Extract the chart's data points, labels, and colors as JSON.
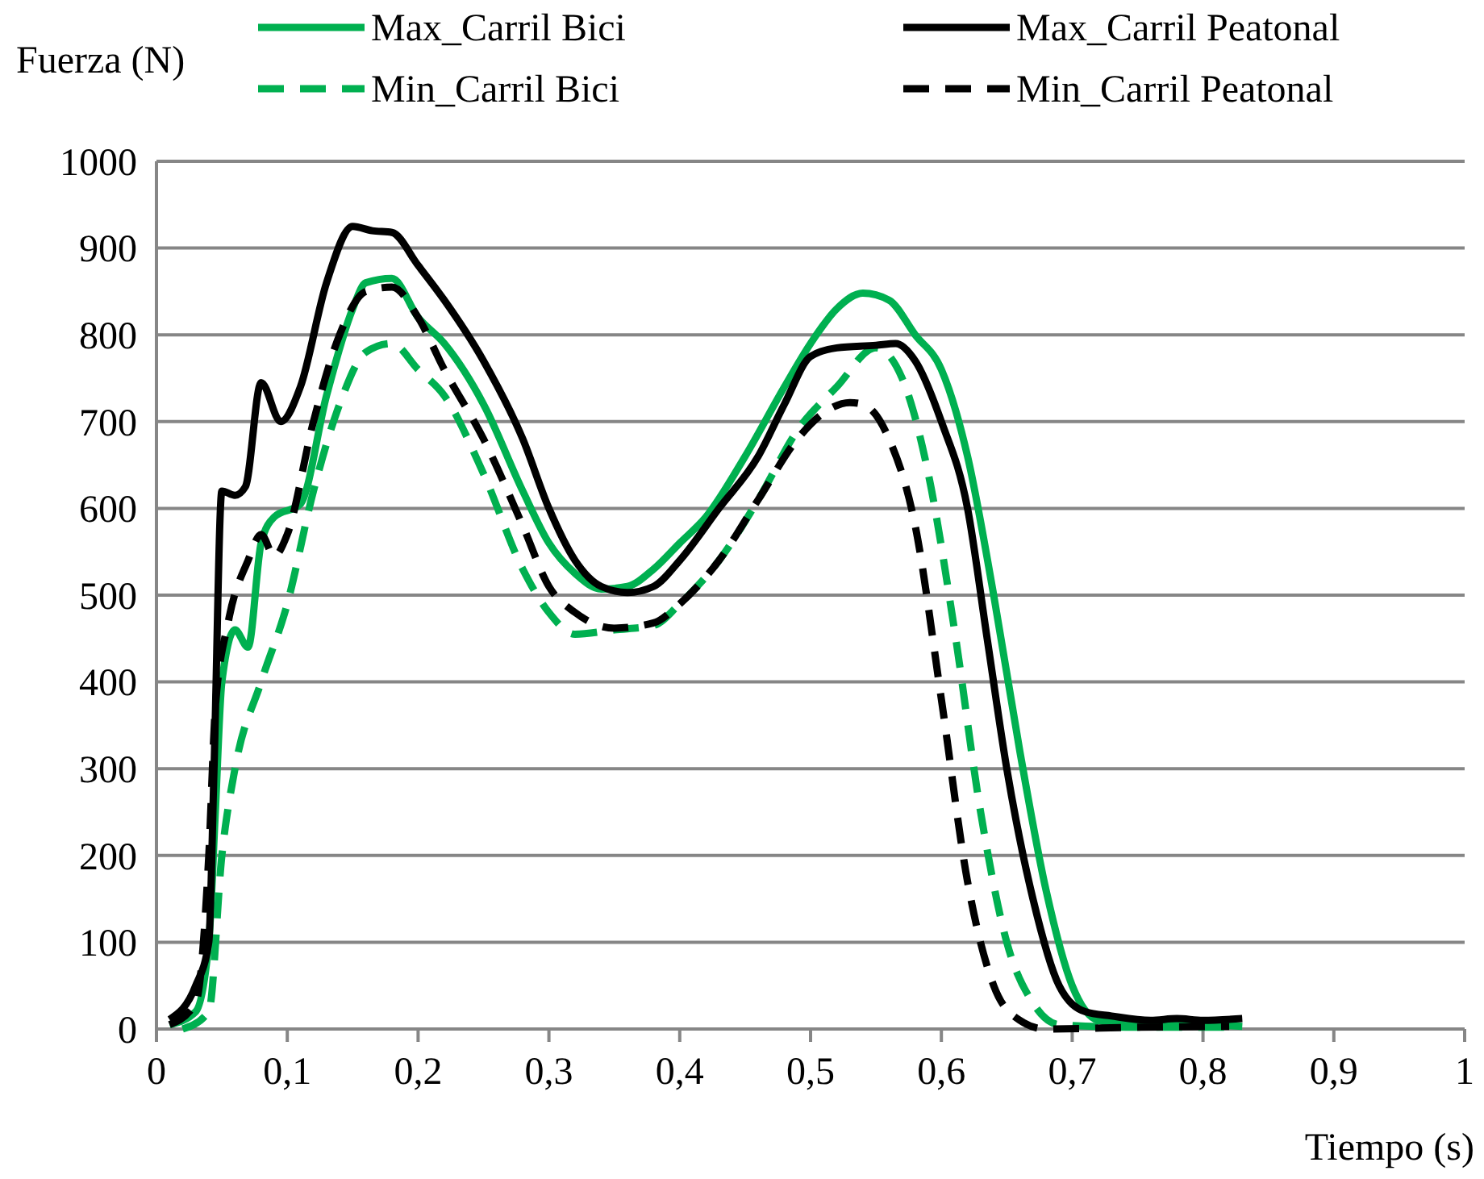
{
  "chart_data": {
    "type": "line",
    "xlabel": "Tiempo (s)",
    "ylabel": "Fuerza (N)",
    "xlim": [
      0,
      1
    ],
    "ylim": [
      0,
      1000
    ],
    "xticks": [
      {
        "value": 0,
        "label": "0"
      },
      {
        "value": 0.1,
        "label": "0,1"
      },
      {
        "value": 0.2,
        "label": "0,2"
      },
      {
        "value": 0.3,
        "label": "0,3"
      },
      {
        "value": 0.4,
        "label": "0,4"
      },
      {
        "value": 0.5,
        "label": "0,5"
      },
      {
        "value": 0.6,
        "label": "0,6"
      },
      {
        "value": 0.7,
        "label": "0,7"
      },
      {
        "value": 0.8,
        "label": "0,8"
      },
      {
        "value": 0.9,
        "label": "0,9"
      },
      {
        "value": 1,
        "label": "1"
      }
    ],
    "yticks": [
      0,
      100,
      200,
      300,
      400,
      500,
      600,
      700,
      800,
      900,
      1000
    ],
    "grid": "y",
    "legend": "top",
    "marker": "none",
    "series": [
      {
        "name": "Max_Carril Bici",
        "color": "#00b050",
        "line_style": "solid",
        "x": [
          0.01,
          0.03,
          0.04,
          0.045,
          0.05,
          0.06,
          0.07,
          0.08,
          0.09,
          0.11,
          0.13,
          0.15,
          0.16,
          0.18,
          0.2,
          0.22,
          0.25,
          0.28,
          0.3,
          0.32,
          0.34,
          0.36,
          0.38,
          0.4,
          0.42,
          0.45,
          0.48,
          0.5,
          0.52,
          0.54,
          0.56,
          0.58,
          0.6,
          0.62,
          0.64,
          0.66,
          0.68,
          0.7,
          0.72,
          0.75,
          0.8,
          0.83
        ],
        "values": [
          5,
          20,
          100,
          250,
          400,
          460,
          440,
          560,
          590,
          605,
          730,
          830,
          860,
          865,
          820,
          790,
          720,
          620,
          560,
          525,
          507,
          510,
          530,
          560,
          590,
          660,
          740,
          790,
          830,
          848,
          840,
          800,
          760,
          660,
          500,
          320,
          160,
          50,
          10,
          5,
          5,
          3
        ]
      },
      {
        "name": "Min_Carril Bici",
        "color": "#00b050",
        "line_style": "dashed",
        "x": [
          0.02,
          0.04,
          0.05,
          0.06,
          0.08,
          0.1,
          0.12,
          0.14,
          0.16,
          0.18,
          0.2,
          0.22,
          0.25,
          0.28,
          0.3,
          0.32,
          0.35,
          0.38,
          0.4,
          0.43,
          0.46,
          0.49,
          0.52,
          0.55,
          0.57,
          0.59,
          0.61,
          0.63,
          0.65,
          0.67,
          0.69,
          0.75,
          0.82
        ],
        "values": [
          0,
          20,
          200,
          300,
          400,
          490,
          620,
          720,
          780,
          790,
          760,
          730,
          640,
          530,
          480,
          455,
          460,
          465,
          490,
          540,
          610,
          690,
          740,
          785,
          750,
          640,
          460,
          250,
          100,
          30,
          5,
          2,
          2
        ]
      },
      {
        "name": "Max_Carril Peatonal",
        "color": "#000000",
        "line_style": "solid",
        "x": [
          0.01,
          0.03,
          0.04,
          0.044,
          0.05,
          0.06,
          0.068,
          0.08,
          0.095,
          0.11,
          0.13,
          0.15,
          0.165,
          0.18,
          0.2,
          0.22,
          0.25,
          0.28,
          0.3,
          0.32,
          0.34,
          0.36,
          0.38,
          0.4,
          0.43,
          0.46,
          0.48,
          0.5,
          0.52,
          0.55,
          0.565,
          0.58,
          0.6,
          0.62,
          0.635,
          0.65,
          0.67,
          0.69,
          0.71,
          0.73,
          0.76,
          0.78,
          0.8,
          0.83
        ],
        "values": [
          11,
          50,
          100,
          300,
          620,
          615,
          625,
          745,
          700,
          740,
          860,
          925,
          920,
          918,
          880,
          840,
          770,
          680,
          600,
          540,
          510,
          503,
          510,
          540,
          600,
          660,
          720,
          775,
          785,
          788,
          790,
          770,
          700,
          600,
          450,
          300,
          150,
          50,
          20,
          15,
          10,
          12,
          10,
          12
        ]
      },
      {
        "name": "Min_Carril Peatonal",
        "color": "#000000",
        "line_style": "dashed",
        "x": [
          0.01,
          0.03,
          0.04,
          0.045,
          0.055,
          0.07,
          0.08,
          0.09,
          0.1,
          0.12,
          0.14,
          0.16,
          0.18,
          0.2,
          0.22,
          0.25,
          0.28,
          0.3,
          0.32,
          0.35,
          0.38,
          0.4,
          0.43,
          0.46,
          0.49,
          0.51,
          0.53,
          0.54,
          0.56,
          0.58,
          0.6,
          0.62,
          0.64,
          0.66,
          0.68,
          0.75,
          0.82
        ],
        "values": [
          5,
          30,
          200,
          370,
          470,
          540,
          570,
          545,
          570,
          700,
          800,
          850,
          855,
          820,
          760,
          680,
          580,
          510,
          480,
          462,
          468,
          490,
          540,
          610,
          680,
          710,
          722,
          720,
          680,
          580,
          380,
          170,
          50,
          10,
          0,
          2,
          3
        ]
      }
    ]
  }
}
